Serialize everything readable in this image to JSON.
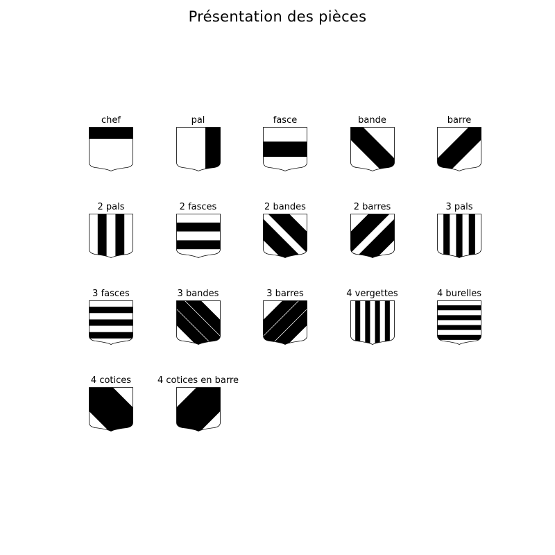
{
  "title": "Présentation des pièces",
  "colors": {
    "field": "#ffffff",
    "charge": "#000000",
    "outline": "#000000"
  },
  "charges": [
    {
      "label": "chef",
      "type": "chef",
      "count": 1
    },
    {
      "label": "pal",
      "type": "pal",
      "count": 1
    },
    {
      "label": "fasce",
      "type": "fasce",
      "count": 1
    },
    {
      "label": "bande",
      "type": "bande",
      "count": 1
    },
    {
      "label": "barre",
      "type": "barre",
      "count": 1
    },
    {
      "label": "2 pals",
      "type": "pal",
      "count": 2
    },
    {
      "label": "2 fasces",
      "type": "fasce",
      "count": 2
    },
    {
      "label": "2 bandes",
      "type": "bande",
      "count": 2
    },
    {
      "label": "2 barres",
      "type": "barre",
      "count": 2
    },
    {
      "label": "3 pals",
      "type": "pal",
      "count": 3
    },
    {
      "label": "3 fasces",
      "type": "fasce",
      "count": 3
    },
    {
      "label": "3 bandes",
      "type": "bande",
      "count": 3
    },
    {
      "label": "3 barres",
      "type": "barre",
      "count": 3
    },
    {
      "label": "4 vergettes",
      "type": "pal",
      "count": 4
    },
    {
      "label": "4 burelles",
      "type": "fasce",
      "count": 4
    },
    {
      "label": "4 cotices",
      "type": "bande",
      "count": 4
    },
    {
      "label": "4 cotices en barre",
      "type": "barre",
      "count": 4
    }
  ]
}
